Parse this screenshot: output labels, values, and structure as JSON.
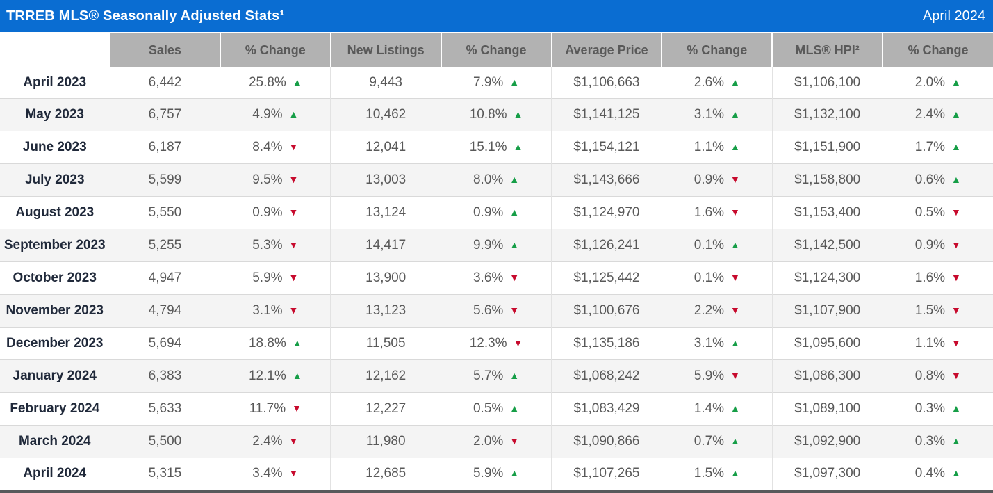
{
  "title_bar": {
    "title": "TRREB MLS® Seasonally Adjusted Stats¹",
    "period": "April 2024"
  },
  "table": {
    "columns": [
      "",
      "Sales",
      "% Change",
      "New Listings",
      "% Change",
      "Average Price",
      "% Change",
      "MLS® HPI²",
      "% Change"
    ],
    "rows": [
      {
        "month": "April 2023",
        "sales": "6,442",
        "sales_change": {
          "value": "25.8%",
          "direction": "up"
        },
        "new_listings": "9,443",
        "new_listings_change": {
          "value": "7.9%",
          "direction": "up"
        },
        "average_price": "$1,106,663",
        "average_price_change": {
          "value": "2.6%",
          "direction": "up"
        },
        "hpi": "$1,106,100",
        "hpi_change": {
          "value": "2.0%",
          "direction": "up"
        }
      },
      {
        "month": "May 2023",
        "sales": "6,757",
        "sales_change": {
          "value": "4.9%",
          "direction": "up"
        },
        "new_listings": "10,462",
        "new_listings_change": {
          "value": "10.8%",
          "direction": "up"
        },
        "average_price": "$1,141,125",
        "average_price_change": {
          "value": "3.1%",
          "direction": "up"
        },
        "hpi": "$1,132,100",
        "hpi_change": {
          "value": "2.4%",
          "direction": "up"
        }
      },
      {
        "month": "June 2023",
        "sales": "6,187",
        "sales_change": {
          "value": "8.4%",
          "direction": "down"
        },
        "new_listings": "12,041",
        "new_listings_change": {
          "value": "15.1%",
          "direction": "up"
        },
        "average_price": "$1,154,121",
        "average_price_change": {
          "value": "1.1%",
          "direction": "up"
        },
        "hpi": "$1,151,900",
        "hpi_change": {
          "value": "1.7%",
          "direction": "up"
        }
      },
      {
        "month": "July 2023",
        "sales": "5,599",
        "sales_change": {
          "value": "9.5%",
          "direction": "down"
        },
        "new_listings": "13,003",
        "new_listings_change": {
          "value": "8.0%",
          "direction": "up"
        },
        "average_price": "$1,143,666",
        "average_price_change": {
          "value": "0.9%",
          "direction": "down"
        },
        "hpi": "$1,158,800",
        "hpi_change": {
          "value": "0.6%",
          "direction": "up"
        }
      },
      {
        "month": "August 2023",
        "sales": "5,550",
        "sales_change": {
          "value": "0.9%",
          "direction": "down"
        },
        "new_listings": "13,124",
        "new_listings_change": {
          "value": "0.9%",
          "direction": "up"
        },
        "average_price": "$1,124,970",
        "average_price_change": {
          "value": "1.6%",
          "direction": "down"
        },
        "hpi": "$1,153,400",
        "hpi_change": {
          "value": "0.5%",
          "direction": "down"
        }
      },
      {
        "month": "September 2023",
        "sales": "5,255",
        "sales_change": {
          "value": "5.3%",
          "direction": "down"
        },
        "new_listings": "14,417",
        "new_listings_change": {
          "value": "9.9%",
          "direction": "up"
        },
        "average_price": "$1,126,241",
        "average_price_change": {
          "value": "0.1%",
          "direction": "up"
        },
        "hpi": "$1,142,500",
        "hpi_change": {
          "value": "0.9%",
          "direction": "down"
        }
      },
      {
        "month": "October 2023",
        "sales": "4,947",
        "sales_change": {
          "value": "5.9%",
          "direction": "down"
        },
        "new_listings": "13,900",
        "new_listings_change": {
          "value": "3.6%",
          "direction": "down"
        },
        "average_price": "$1,125,442",
        "average_price_change": {
          "value": "0.1%",
          "direction": "down"
        },
        "hpi": "$1,124,300",
        "hpi_change": {
          "value": "1.6%",
          "direction": "down"
        }
      },
      {
        "month": "November 2023",
        "sales": "4,794",
        "sales_change": {
          "value": "3.1%",
          "direction": "down"
        },
        "new_listings": "13,123",
        "new_listings_change": {
          "value": "5.6%",
          "direction": "down"
        },
        "average_price": "$1,100,676",
        "average_price_change": {
          "value": "2.2%",
          "direction": "down"
        },
        "hpi": "$1,107,900",
        "hpi_change": {
          "value": "1.5%",
          "direction": "down"
        }
      },
      {
        "month": "December 2023",
        "sales": "5,694",
        "sales_change": {
          "value": "18.8%",
          "direction": "up"
        },
        "new_listings": "11,505",
        "new_listings_change": {
          "value": "12.3%",
          "direction": "down"
        },
        "average_price": "$1,135,186",
        "average_price_change": {
          "value": "3.1%",
          "direction": "up"
        },
        "hpi": "$1,095,600",
        "hpi_change": {
          "value": "1.1%",
          "direction": "down"
        }
      },
      {
        "month": "January 2024",
        "sales": "6,383",
        "sales_change": {
          "value": "12.1%",
          "direction": "up"
        },
        "new_listings": "12,162",
        "new_listings_change": {
          "value": "5.7%",
          "direction": "up"
        },
        "average_price": "$1,068,242",
        "average_price_change": {
          "value": "5.9%",
          "direction": "down"
        },
        "hpi": "$1,086,300",
        "hpi_change": {
          "value": "0.8%",
          "direction": "down"
        }
      },
      {
        "month": "February 2024",
        "sales": "5,633",
        "sales_change": {
          "value": "11.7%",
          "direction": "down"
        },
        "new_listings": "12,227",
        "new_listings_change": {
          "value": "0.5%",
          "direction": "up"
        },
        "average_price": "$1,083,429",
        "average_price_change": {
          "value": "1.4%",
          "direction": "up"
        },
        "hpi": "$1,089,100",
        "hpi_change": {
          "value": "0.3%",
          "direction": "up"
        }
      },
      {
        "month": "March 2024",
        "sales": "5,500",
        "sales_change": {
          "value": "2.4%",
          "direction": "down"
        },
        "new_listings": "11,980",
        "new_listings_change": {
          "value": "2.0%",
          "direction": "down"
        },
        "average_price": "$1,090,866",
        "average_price_change": {
          "value": "0.7%",
          "direction": "up"
        },
        "hpi": "$1,092,900",
        "hpi_change": {
          "value": "0.3%",
          "direction": "up"
        }
      },
      {
        "month": "April 2024",
        "sales": "5,315",
        "sales_change": {
          "value": "3.4%",
          "direction": "down"
        },
        "new_listings": "12,685",
        "new_listings_change": {
          "value": "5.9%",
          "direction": "up"
        },
        "average_price": "$1,107,265",
        "average_price_change": {
          "value": "1.5%",
          "direction": "up"
        },
        "hpi": "$1,097,300",
        "hpi_change": {
          "value": "0.4%",
          "direction": "up"
        }
      }
    ]
  },
  "icons": {
    "up": "▲",
    "down": "▼"
  },
  "colors": {
    "title_bar_blue": "#0a6dd2",
    "column_header_gray": "#b2b2b2",
    "up_green": "#169e47",
    "down_red": "#c70a2d",
    "row_alt_gray": "#f4f4f4",
    "bottom_bar_gray": "#58595b"
  }
}
